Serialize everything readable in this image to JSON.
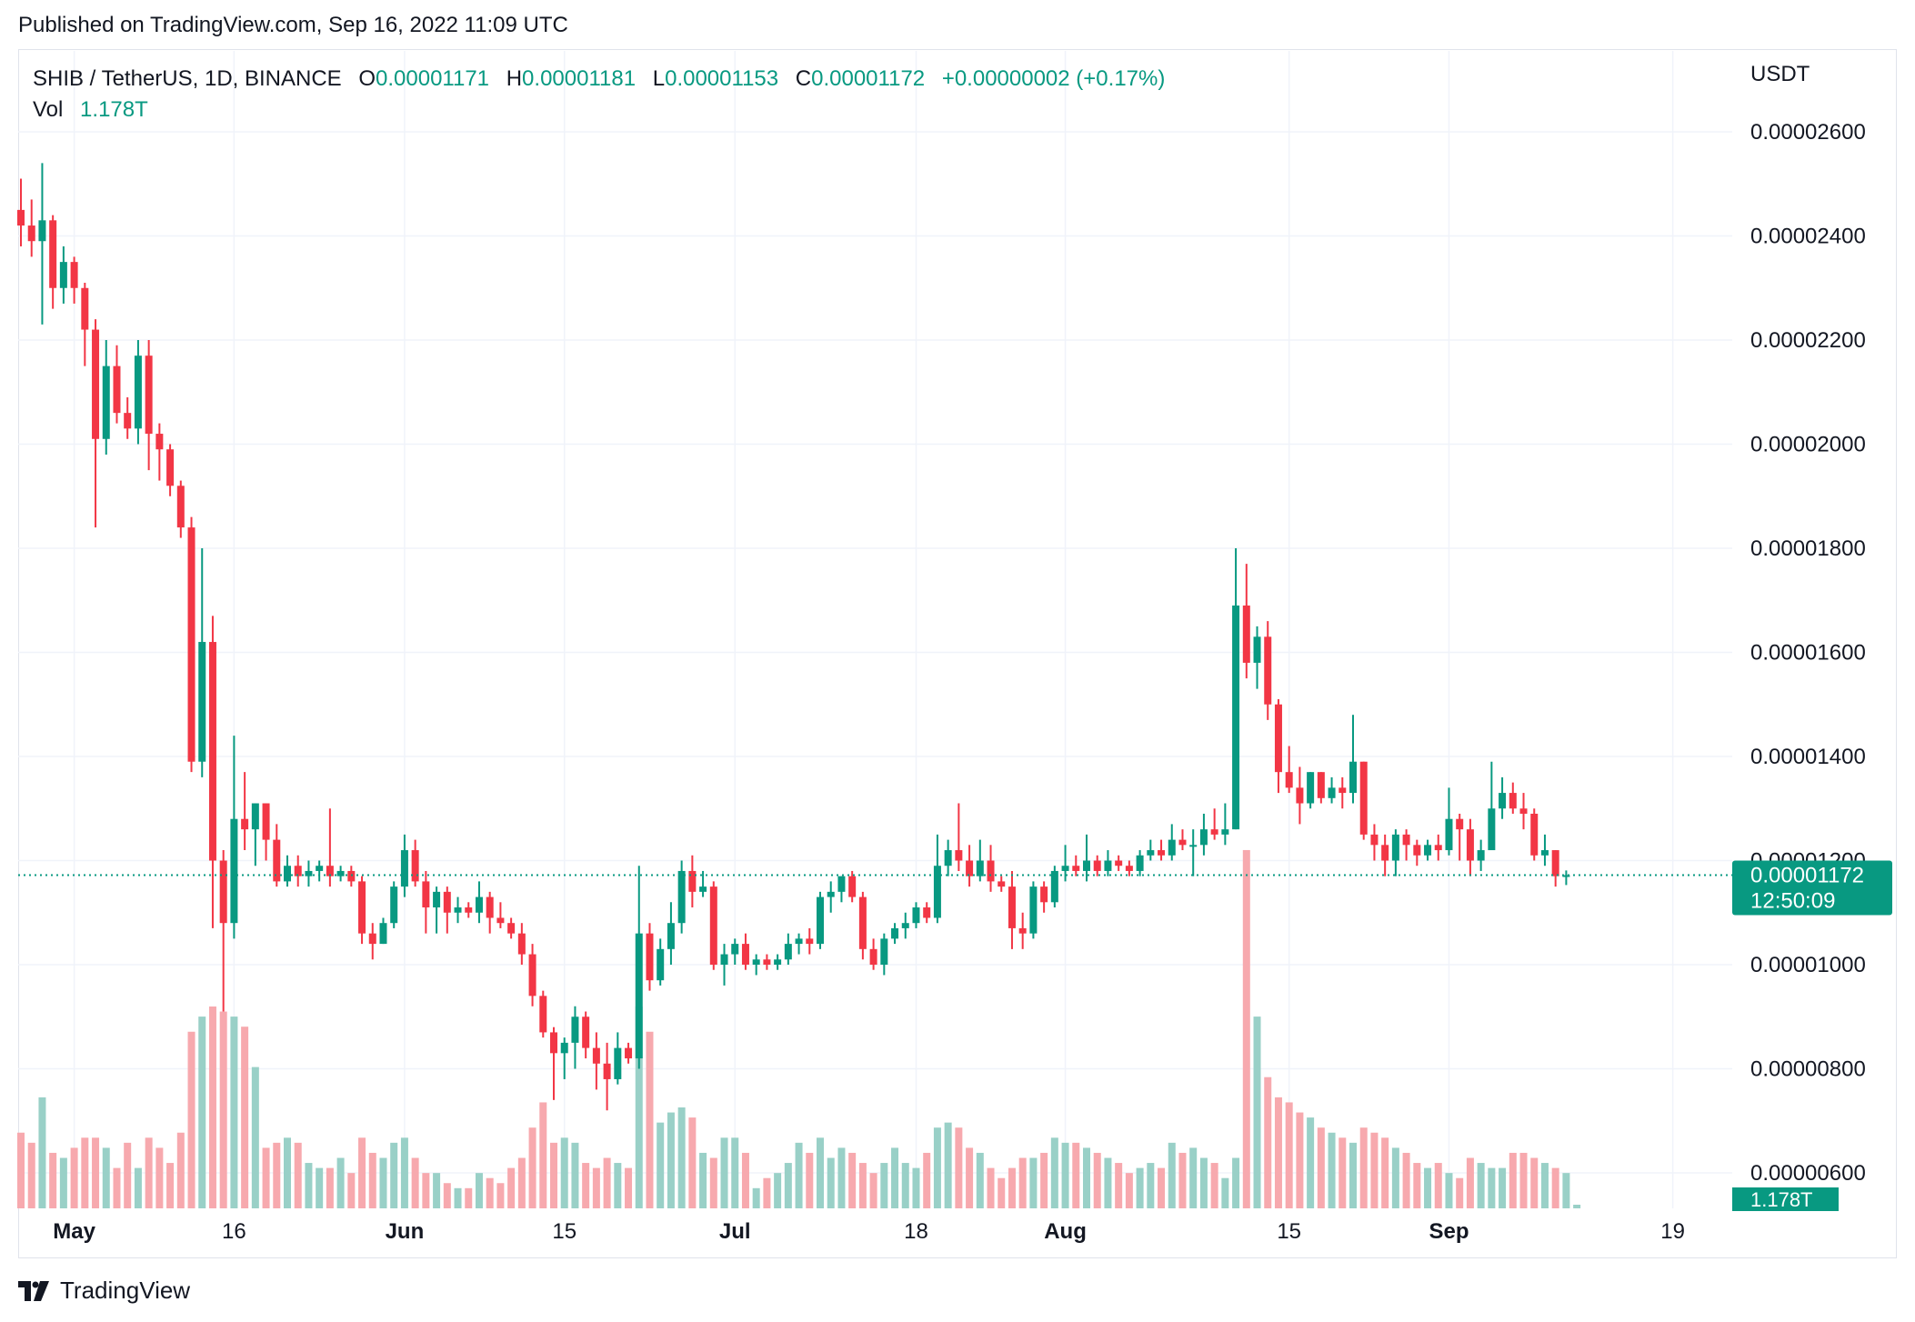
{
  "header": {
    "published": "Published on TradingView.com, Sep 16, 2022 11:09 UTC"
  },
  "legend": {
    "symbol": "SHIB / TetherUS, 1D, BINANCE",
    "o_label": "O",
    "o_value": "0.00001171",
    "h_label": "H",
    "h_value": "0.00001181",
    "l_label": "L",
    "l_value": "0.00001153",
    "c_label": "C",
    "c_value": "0.00001172",
    "change": "+0.00000002 (+0.17%)",
    "vol_label": "Vol",
    "vol_value": "1.178T"
  },
  "price_axis": {
    "currency": "USDT",
    "ticks": [
      "0.00002600",
      "0.00002400",
      "0.00002200",
      "0.00002000",
      "0.00001800",
      "0.00001600",
      "0.00001400",
      "0.00001200",
      "0.00001000",
      "0.00000800",
      "0.00000600"
    ],
    "last_price": "0.00001172",
    "countdown": "12:50:09",
    "volume_badge": "1.178T"
  },
  "time_axis": {
    "labels": [
      "May",
      "16",
      "Jun",
      "15",
      "Jul",
      "18",
      "Aug",
      "15",
      "Sep",
      "19"
    ]
  },
  "colors": {
    "up": "#089981",
    "down": "#f23645",
    "up_volume": "#99d0c7",
    "down_volume": "#f7a9ae",
    "grid": "#f0f3fa",
    "text": "#131722"
  },
  "footer": {
    "brand": "TradingView",
    "logo_icon": "tradingview-logo-icon"
  },
  "chart_data": {
    "type": "candlestick",
    "title": "SHIB / TetherUS, 1D, BINANCE",
    "ylabel": "USDT",
    "ylim": [
      5.8e-06,
      2.7e-05
    ],
    "grid": true,
    "start_date": "2022-04-26",
    "candles": [
      {
        "o": 2.45e-05,
        "h": 2.51e-05,
        "l": 2.38e-05,
        "c": 2.42e-05
      },
      {
        "o": 2.42e-05,
        "h": 2.47e-05,
        "l": 2.36e-05,
        "c": 2.39e-05
      },
      {
        "o": 2.39e-05,
        "h": 2.54e-05,
        "l": 2.23e-05,
        "c": 2.43e-05
      },
      {
        "o": 2.43e-05,
        "h": 2.44e-05,
        "l": 2.26e-05,
        "c": 2.3e-05
      },
      {
        "o": 2.3e-05,
        "h": 2.38e-05,
        "l": 2.27e-05,
        "c": 2.35e-05
      },
      {
        "o": 2.35e-05,
        "h": 2.36e-05,
        "l": 2.27e-05,
        "c": 2.3e-05
      },
      {
        "o": 2.3e-05,
        "h": 2.31e-05,
        "l": 2.15e-05,
        "c": 2.22e-05
      },
      {
        "o": 2.22e-05,
        "h": 2.24e-05,
        "l": 1.84e-05,
        "c": 2.01e-05
      },
      {
        "o": 2.01e-05,
        "h": 2.2e-05,
        "l": 1.98e-05,
        "c": 2.15e-05
      },
      {
        "o": 2.15e-05,
        "h": 2.19e-05,
        "l": 2.04e-05,
        "c": 2.06e-05
      },
      {
        "o": 2.06e-05,
        "h": 2.09e-05,
        "l": 2.01e-05,
        "c": 2.03e-05
      },
      {
        "o": 2.03e-05,
        "h": 2.2e-05,
        "l": 2e-05,
        "c": 2.17e-05
      },
      {
        "o": 2.17e-05,
        "h": 2.2e-05,
        "l": 1.95e-05,
        "c": 2.02e-05
      },
      {
        "o": 2.02e-05,
        "h": 2.04e-05,
        "l": 1.93e-05,
        "c": 1.99e-05
      },
      {
        "o": 1.99e-05,
        "h": 2e-05,
        "l": 1.9e-05,
        "c": 1.92e-05
      },
      {
        "o": 1.92e-05,
        "h": 1.93e-05,
        "l": 1.82e-05,
        "c": 1.84e-05
      },
      {
        "o": 1.84e-05,
        "h": 1.86e-05,
        "l": 1.37e-05,
        "c": 1.39e-05
      },
      {
        "o": 1.39e-05,
        "h": 1.8e-05,
        "l": 1.36e-05,
        "c": 1.62e-05
      },
      {
        "o": 1.62e-05,
        "h": 1.67e-05,
        "l": 1.07e-05,
        "c": 1.2e-05
      },
      {
        "o": 1.2e-05,
        "h": 1.22e-05,
        "l": 9.1e-06,
        "c": 1.08e-05
      },
      {
        "o": 1.08e-05,
        "h": 1.44e-05,
        "l": 1.05e-05,
        "c": 1.28e-05
      },
      {
        "o": 1.28e-05,
        "h": 1.37e-05,
        "l": 1.22e-05,
        "c": 1.26e-05
      },
      {
        "o": 1.26e-05,
        "h": 1.31e-05,
        "l": 1.19e-05,
        "c": 1.31e-05
      },
      {
        "o": 1.31e-05,
        "h": 1.31e-05,
        "l": 1.2e-05,
        "c": 1.24e-05
      },
      {
        "o": 1.24e-05,
        "h": 1.27e-05,
        "l": 1.15e-05,
        "c": 1.16e-05
      },
      {
        "o": 1.16e-05,
        "h": 1.21e-05,
        "l": 1.15e-05,
        "c": 1.19e-05
      },
      {
        "o": 1.19e-05,
        "h": 1.21e-05,
        "l": 1.15e-05,
        "c": 1.17e-05
      },
      {
        "o": 1.17e-05,
        "h": 1.2e-05,
        "l": 1.15e-05,
        "c": 1.18e-05
      },
      {
        "o": 1.18e-05,
        "h": 1.2e-05,
        "l": 1.16e-05,
        "c": 1.19e-05
      },
      {
        "o": 1.19e-05,
        "h": 1.3e-05,
        "l": 1.15e-05,
        "c": 1.17e-05
      },
      {
        "o": 1.17e-05,
        "h": 1.19e-05,
        "l": 1.16e-05,
        "c": 1.18e-05
      },
      {
        "o": 1.18e-05,
        "h": 1.19e-05,
        "l": 1.15e-05,
        "c": 1.16e-05
      },
      {
        "o": 1.16e-05,
        "h": 1.17e-05,
        "l": 1.04e-05,
        "c": 1.06e-05
      },
      {
        "o": 1.06e-05,
        "h": 1.08e-05,
        "l": 1.01e-05,
        "c": 1.04e-05
      },
      {
        "o": 1.04e-05,
        "h": 1.09e-05,
        "l": 1.04e-05,
        "c": 1.08e-05
      },
      {
        "o": 1.08e-05,
        "h": 1.16e-05,
        "l": 1.07e-05,
        "c": 1.15e-05
      },
      {
        "o": 1.15e-05,
        "h": 1.25e-05,
        "l": 1.13e-05,
        "c": 1.22e-05
      },
      {
        "o": 1.22e-05,
        "h": 1.24e-05,
        "l": 1.15e-05,
        "c": 1.16e-05
      },
      {
        "o": 1.16e-05,
        "h": 1.18e-05,
        "l": 1.06e-05,
        "c": 1.11e-05
      },
      {
        "o": 1.11e-05,
        "h": 1.15e-05,
        "l": 1.06e-05,
        "c": 1.14e-05
      },
      {
        "o": 1.14e-05,
        "h": 1.15e-05,
        "l": 1.06e-05,
        "c": 1.1e-05
      },
      {
        "o": 1.1e-05,
        "h": 1.13e-05,
        "l": 1.08e-05,
        "c": 1.11e-05
      },
      {
        "o": 1.11e-05,
        "h": 1.12e-05,
        "l": 1.09e-05,
        "c": 1.1e-05
      },
      {
        "o": 1.1e-05,
        "h": 1.16e-05,
        "l": 1.08e-05,
        "c": 1.13e-05
      },
      {
        "o": 1.13e-05,
        "h": 1.14e-05,
        "l": 1.06e-05,
        "c": 1.09e-05
      },
      {
        "o": 1.09e-05,
        "h": 1.12e-05,
        "l": 1.07e-05,
        "c": 1.08e-05
      },
      {
        "o": 1.08e-05,
        "h": 1.09e-05,
        "l": 1.05e-05,
        "c": 1.06e-05
      },
      {
        "o": 1.06e-05,
        "h": 1.08e-05,
        "l": 1e-05,
        "c": 1.02e-05
      },
      {
        "o": 1.02e-05,
        "h": 1.04e-05,
        "l": 9.2e-06,
        "c": 9.4e-06
      },
      {
        "o": 9.4e-06,
        "h": 9.5e-06,
        "l": 8.6e-06,
        "c": 8.7e-06
      },
      {
        "o": 8.7e-06,
        "h": 8.8e-06,
        "l": 7.4e-06,
        "c": 8.3e-06
      },
      {
        "o": 8.3e-06,
        "h": 8.6e-06,
        "l": 7.8e-06,
        "c": 8.5e-06
      },
      {
        "o": 8.5e-06,
        "h": 9.2e-06,
        "l": 8e-06,
        "c": 9e-06
      },
      {
        "o": 9e-06,
        "h": 9.1e-06,
        "l": 8.2e-06,
        "c": 8.4e-06
      },
      {
        "o": 8.4e-06,
        "h": 8.7e-06,
        "l": 7.6e-06,
        "c": 8.1e-06
      },
      {
        "o": 8.1e-06,
        "h": 8.5e-06,
        "l": 7.2e-06,
        "c": 7.8e-06
      },
      {
        "o": 7.8e-06,
        "h": 8.7e-06,
        "l": 7.7e-06,
        "c": 8.4e-06
      },
      {
        "o": 8.4e-06,
        "h": 8.5e-06,
        "l": 8.1e-06,
        "c": 8.2e-06
      },
      {
        "o": 8.2e-06,
        "h": 1.19e-05,
        "l": 8e-06,
        "c": 1.06e-05
      },
      {
        "o": 1.06e-05,
        "h": 1.08e-05,
        "l": 9.5e-06,
        "c": 9.7e-06
      },
      {
        "o": 9.7e-06,
        "h": 1.05e-05,
        "l": 9.6e-06,
        "c": 1.03e-05
      },
      {
        "o": 1.03e-05,
        "h": 1.12e-05,
        "l": 1e-05,
        "c": 1.08e-05
      },
      {
        "o": 1.08e-05,
        "h": 1.2e-05,
        "l": 1.06e-05,
        "c": 1.18e-05
      },
      {
        "o": 1.18e-05,
        "h": 1.21e-05,
        "l": 1.11e-05,
        "c": 1.14e-05
      },
      {
        "o": 1.14e-05,
        "h": 1.18e-05,
        "l": 1.13e-05,
        "c": 1.15e-05
      },
      {
        "o": 1.15e-05,
        "h": 1.16e-05,
        "l": 9.9e-06,
        "c": 1e-05
      },
      {
        "o": 1e-05,
        "h": 1.04e-05,
        "l": 9.6e-06,
        "c": 1.02e-05
      },
      {
        "o": 1.02e-05,
        "h": 1.05e-05,
        "l": 1e-05,
        "c": 1.04e-05
      },
      {
        "o": 1.04e-05,
        "h": 1.06e-05,
        "l": 9.9e-06,
        "c": 1e-05
      },
      {
        "o": 1e-05,
        "h": 1.02e-05,
        "l": 9.8e-06,
        "c": 1.01e-05
      },
      {
        "o": 1.01e-05,
        "h": 1.02e-05,
        "l": 9.9e-06,
        "c": 1e-05
      },
      {
        "o": 1e-05,
        "h": 1.02e-05,
        "l": 9.9e-06,
        "c": 1.01e-05
      },
      {
        "o": 1.01e-05,
        "h": 1.06e-05,
        "l": 1e-05,
        "c": 1.04e-05
      },
      {
        "o": 1.04e-05,
        "h": 1.06e-05,
        "l": 1.02e-05,
        "c": 1.05e-05
      },
      {
        "o": 1.05e-05,
        "h": 1.07e-05,
        "l": 1.02e-05,
        "c": 1.04e-05
      },
      {
        "o": 1.04e-05,
        "h": 1.14e-05,
        "l": 1.03e-05,
        "c": 1.13e-05
      },
      {
        "o": 1.13e-05,
        "h": 1.16e-05,
        "l": 1.1e-05,
        "c": 1.14e-05
      },
      {
        "o": 1.14e-05,
        "h": 1.17e-05,
        "l": 1.12e-05,
        "c": 1.17e-05
      },
      {
        "o": 1.17e-05,
        "h": 1.18e-05,
        "l": 1.12e-05,
        "c": 1.13e-05
      },
      {
        "o": 1.13e-05,
        "h": 1.14e-05,
        "l": 1.01e-05,
        "c": 1.03e-05
      },
      {
        "o": 1.03e-05,
        "h": 1.05e-05,
        "l": 9.9e-06,
        "c": 1e-05
      },
      {
        "o": 1e-05,
        "h": 1.06e-05,
        "l": 9.8e-06,
        "c": 1.05e-05
      },
      {
        "o": 1.05e-05,
        "h": 1.08e-05,
        "l": 1.04e-05,
        "c": 1.07e-05
      },
      {
        "o": 1.07e-05,
        "h": 1.1e-05,
        "l": 1.05e-05,
        "c": 1.08e-05
      },
      {
        "o": 1.08e-05,
        "h": 1.12e-05,
        "l": 1.07e-05,
        "c": 1.11e-05
      },
      {
        "o": 1.11e-05,
        "h": 1.12e-05,
        "l": 1.08e-05,
        "c": 1.09e-05
      },
      {
        "o": 1.09e-05,
        "h": 1.25e-05,
        "l": 1.08e-05,
        "c": 1.19e-05
      },
      {
        "o": 1.19e-05,
        "h": 1.24e-05,
        "l": 1.17e-05,
        "c": 1.22e-05
      },
      {
        "o": 1.22e-05,
        "h": 1.31e-05,
        "l": 1.18e-05,
        "c": 1.2e-05
      },
      {
        "o": 1.2e-05,
        "h": 1.23e-05,
        "l": 1.15e-05,
        "c": 1.17e-05
      },
      {
        "o": 1.17e-05,
        "h": 1.24e-05,
        "l": 1.16e-05,
        "c": 1.2e-05
      },
      {
        "o": 1.2e-05,
        "h": 1.23e-05,
        "l": 1.14e-05,
        "c": 1.16e-05
      },
      {
        "o": 1.16e-05,
        "h": 1.17e-05,
        "l": 1.14e-05,
        "c": 1.15e-05
      },
      {
        "o": 1.15e-05,
        "h": 1.18e-05,
        "l": 1.03e-05,
        "c": 1.07e-05
      },
      {
        "o": 1.07e-05,
        "h": 1.1e-05,
        "l": 1.03e-05,
        "c": 1.06e-05
      },
      {
        "o": 1.06e-05,
        "h": 1.16e-05,
        "l": 1.05e-05,
        "c": 1.15e-05
      },
      {
        "o": 1.15e-05,
        "h": 1.16e-05,
        "l": 1.1e-05,
        "c": 1.12e-05
      },
      {
        "o": 1.12e-05,
        "h": 1.19e-05,
        "l": 1.11e-05,
        "c": 1.18e-05
      },
      {
        "o": 1.18e-05,
        "h": 1.23e-05,
        "l": 1.16e-05,
        "c": 1.19e-05
      },
      {
        "o": 1.19e-05,
        "h": 1.21e-05,
        "l": 1.17e-05,
        "c": 1.18e-05
      },
      {
        "o": 1.18e-05,
        "h": 1.25e-05,
        "l": 1.16e-05,
        "c": 1.2e-05
      },
      {
        "o": 1.2e-05,
        "h": 1.21e-05,
        "l": 1.17e-05,
        "c": 1.18e-05
      },
      {
        "o": 1.18e-05,
        "h": 1.22e-05,
        "l": 1.17e-05,
        "c": 1.2e-05
      },
      {
        "o": 1.2e-05,
        "h": 1.21e-05,
        "l": 1.18e-05,
        "c": 1.19e-05
      },
      {
        "o": 1.19e-05,
        "h": 1.2e-05,
        "l": 1.17e-05,
        "c": 1.18e-05
      },
      {
        "o": 1.18e-05,
        "h": 1.22e-05,
        "l": 1.17e-05,
        "c": 1.21e-05
      },
      {
        "o": 1.21e-05,
        "h": 1.24e-05,
        "l": 1.2e-05,
        "c": 1.22e-05
      },
      {
        "o": 1.22e-05,
        "h": 1.24e-05,
        "l": 1.2e-05,
        "c": 1.21e-05
      },
      {
        "o": 1.21e-05,
        "h": 1.27e-05,
        "l": 1.2e-05,
        "c": 1.24e-05
      },
      {
        "o": 1.24e-05,
        "h": 1.26e-05,
        "l": 1.22e-05,
        "c": 1.23e-05
      },
      {
        "o": 1.23e-05,
        "h": 1.26e-05,
        "l": 1.17e-05,
        "c": 1.23e-05
      },
      {
        "o": 1.23e-05,
        "h": 1.29e-05,
        "l": 1.21e-05,
        "c": 1.26e-05
      },
      {
        "o": 1.26e-05,
        "h": 1.3e-05,
        "l": 1.24e-05,
        "c": 1.25e-05
      },
      {
        "o": 1.25e-05,
        "h": 1.31e-05,
        "l": 1.23e-05,
        "c": 1.26e-05
      },
      {
        "o": 1.26e-05,
        "h": 1.8e-05,
        "l": 1.26e-05,
        "c": 1.69e-05
      },
      {
        "o": 1.69e-05,
        "h": 1.77e-05,
        "l": 1.55e-05,
        "c": 1.58e-05
      },
      {
        "o": 1.58e-05,
        "h": 1.65e-05,
        "l": 1.53e-05,
        "c": 1.63e-05
      },
      {
        "o": 1.63e-05,
        "h": 1.66e-05,
        "l": 1.47e-05,
        "c": 1.5e-05
      },
      {
        "o": 1.5e-05,
        "h": 1.51e-05,
        "l": 1.33e-05,
        "c": 1.37e-05
      },
      {
        "o": 1.37e-05,
        "h": 1.42e-05,
        "l": 1.33e-05,
        "c": 1.34e-05
      },
      {
        "o": 1.34e-05,
        "h": 1.38e-05,
        "l": 1.27e-05,
        "c": 1.31e-05
      },
      {
        "o": 1.31e-05,
        "h": 1.37e-05,
        "l": 1.3e-05,
        "c": 1.37e-05
      },
      {
        "o": 1.37e-05,
        "h": 1.37e-05,
        "l": 1.31e-05,
        "c": 1.32e-05
      },
      {
        "o": 1.32e-05,
        "h": 1.36e-05,
        "l": 1.31e-05,
        "c": 1.34e-05
      },
      {
        "o": 1.34e-05,
        "h": 1.36e-05,
        "l": 1.3e-05,
        "c": 1.33e-05
      },
      {
        "o": 1.33e-05,
        "h": 1.48e-05,
        "l": 1.31e-05,
        "c": 1.39e-05
      },
      {
        "o": 1.39e-05,
        "h": 1.39e-05,
        "l": 1.24e-05,
        "c": 1.25e-05
      },
      {
        "o": 1.25e-05,
        "h": 1.27e-05,
        "l": 1.2e-05,
        "c": 1.23e-05
      },
      {
        "o": 1.23e-05,
        "h": 1.25e-05,
        "l": 1.17e-05,
        "c": 1.2e-05
      },
      {
        "o": 1.2e-05,
        "h": 1.26e-05,
        "l": 1.17e-05,
        "c": 1.25e-05
      },
      {
        "o": 1.25e-05,
        "h": 1.26e-05,
        "l": 1.2e-05,
        "c": 1.23e-05
      },
      {
        "o": 1.23e-05,
        "h": 1.24e-05,
        "l": 1.19e-05,
        "c": 1.21e-05
      },
      {
        "o": 1.21e-05,
        "h": 1.24e-05,
        "l": 1.2e-05,
        "c": 1.23e-05
      },
      {
        "o": 1.23e-05,
        "h": 1.25e-05,
        "l": 1.2e-05,
        "c": 1.22e-05
      },
      {
        "o": 1.22e-05,
        "h": 1.34e-05,
        "l": 1.21e-05,
        "c": 1.28e-05
      },
      {
        "o": 1.28e-05,
        "h": 1.29e-05,
        "l": 1.2e-05,
        "c": 1.26e-05
      },
      {
        "o": 1.26e-05,
        "h": 1.28e-05,
        "l": 1.17e-05,
        "c": 1.2e-05
      },
      {
        "o": 1.2e-05,
        "h": 1.24e-05,
        "l": 1.18e-05,
        "c": 1.22e-05
      },
      {
        "o": 1.22e-05,
        "h": 1.39e-05,
        "l": 1.22e-05,
        "c": 1.3e-05
      },
      {
        "o": 1.3e-05,
        "h": 1.36e-05,
        "l": 1.28e-05,
        "c": 1.33e-05
      },
      {
        "o": 1.33e-05,
        "h": 1.35e-05,
        "l": 1.29e-05,
        "c": 1.3e-05
      },
      {
        "o": 1.3e-05,
        "h": 1.33e-05,
        "l": 1.26e-05,
        "c": 1.29e-05
      },
      {
        "o": 1.29e-05,
        "h": 1.3e-05,
        "l": 1.2e-05,
        "c": 1.21e-05
      },
      {
        "o": 1.21e-05,
        "h": 1.25e-05,
        "l": 1.19e-05,
        "c": 1.22e-05
      },
      {
        "o": 1.22e-05,
        "h": 1.22e-05,
        "l": 1.15e-05,
        "c": 1.17e-05
      },
      {
        "o": 1.171e-05,
        "h": 1.181e-05,
        "l": 1.153e-05,
        "c": 1.172e-05
      }
    ],
    "volume_T": [
      1.35,
      1.33,
      1.42,
      1.31,
      1.3,
      1.32,
      1.34,
      1.34,
      1.32,
      1.28,
      1.33,
      1.28,
      1.34,
      1.32,
      1.29,
      1.35,
      1.55,
      1.58,
      1.6,
      1.59,
      1.58,
      1.56,
      1.48,
      1.32,
      1.33,
      1.34,
      1.33,
      1.29,
      1.28,
      1.28,
      1.3,
      1.27,
      1.34,
      1.31,
      1.3,
      1.33,
      1.34,
      1.3,
      1.27,
      1.27,
      1.25,
      1.24,
      1.24,
      1.27,
      1.26,
      1.25,
      1.28,
      1.3,
      1.36,
      1.41,
      1.33,
      1.34,
      1.33,
      1.29,
      1.28,
      1.3,
      1.29,
      1.28,
      1.6,
      1.55,
      1.37,
      1.39,
      1.4,
      1.38,
      1.31,
      1.3,
      1.34,
      1.34,
      1.31,
      1.24,
      1.26,
      1.27,
      1.29,
      1.33,
      1.31,
      1.34,
      1.3,
      1.32,
      1.31,
      1.29,
      1.27,
      1.29,
      1.32,
      1.29,
      1.28,
      1.31,
      1.36,
      1.37,
      1.36,
      1.32,
      1.31,
      1.28,
      1.26,
      1.28,
      1.3,
      1.3,
      1.31,
      1.34,
      1.33,
      1.33,
      1.32,
      1.31,
      1.3,
      1.29,
      1.27,
      1.28,
      1.29,
      1.28,
      1.33,
      1.31,
      1.32,
      1.3,
      1.29,
      1.26,
      1.3,
      1.91,
      1.58,
      1.46,
      1.42,
      1.41,
      1.39,
      1.38,
      1.36,
      1.35,
      1.34,
      1.33,
      1.36,
      1.35,
      1.34,
      1.32,
      1.31,
      1.29,
      1.28,
      1.29,
      1.27,
      1.26,
      1.3,
      1.29,
      1.28,
      1.28,
      1.31,
      1.31,
      1.3,
      1.29,
      1.28,
      1.27,
      1.178
    ]
  }
}
